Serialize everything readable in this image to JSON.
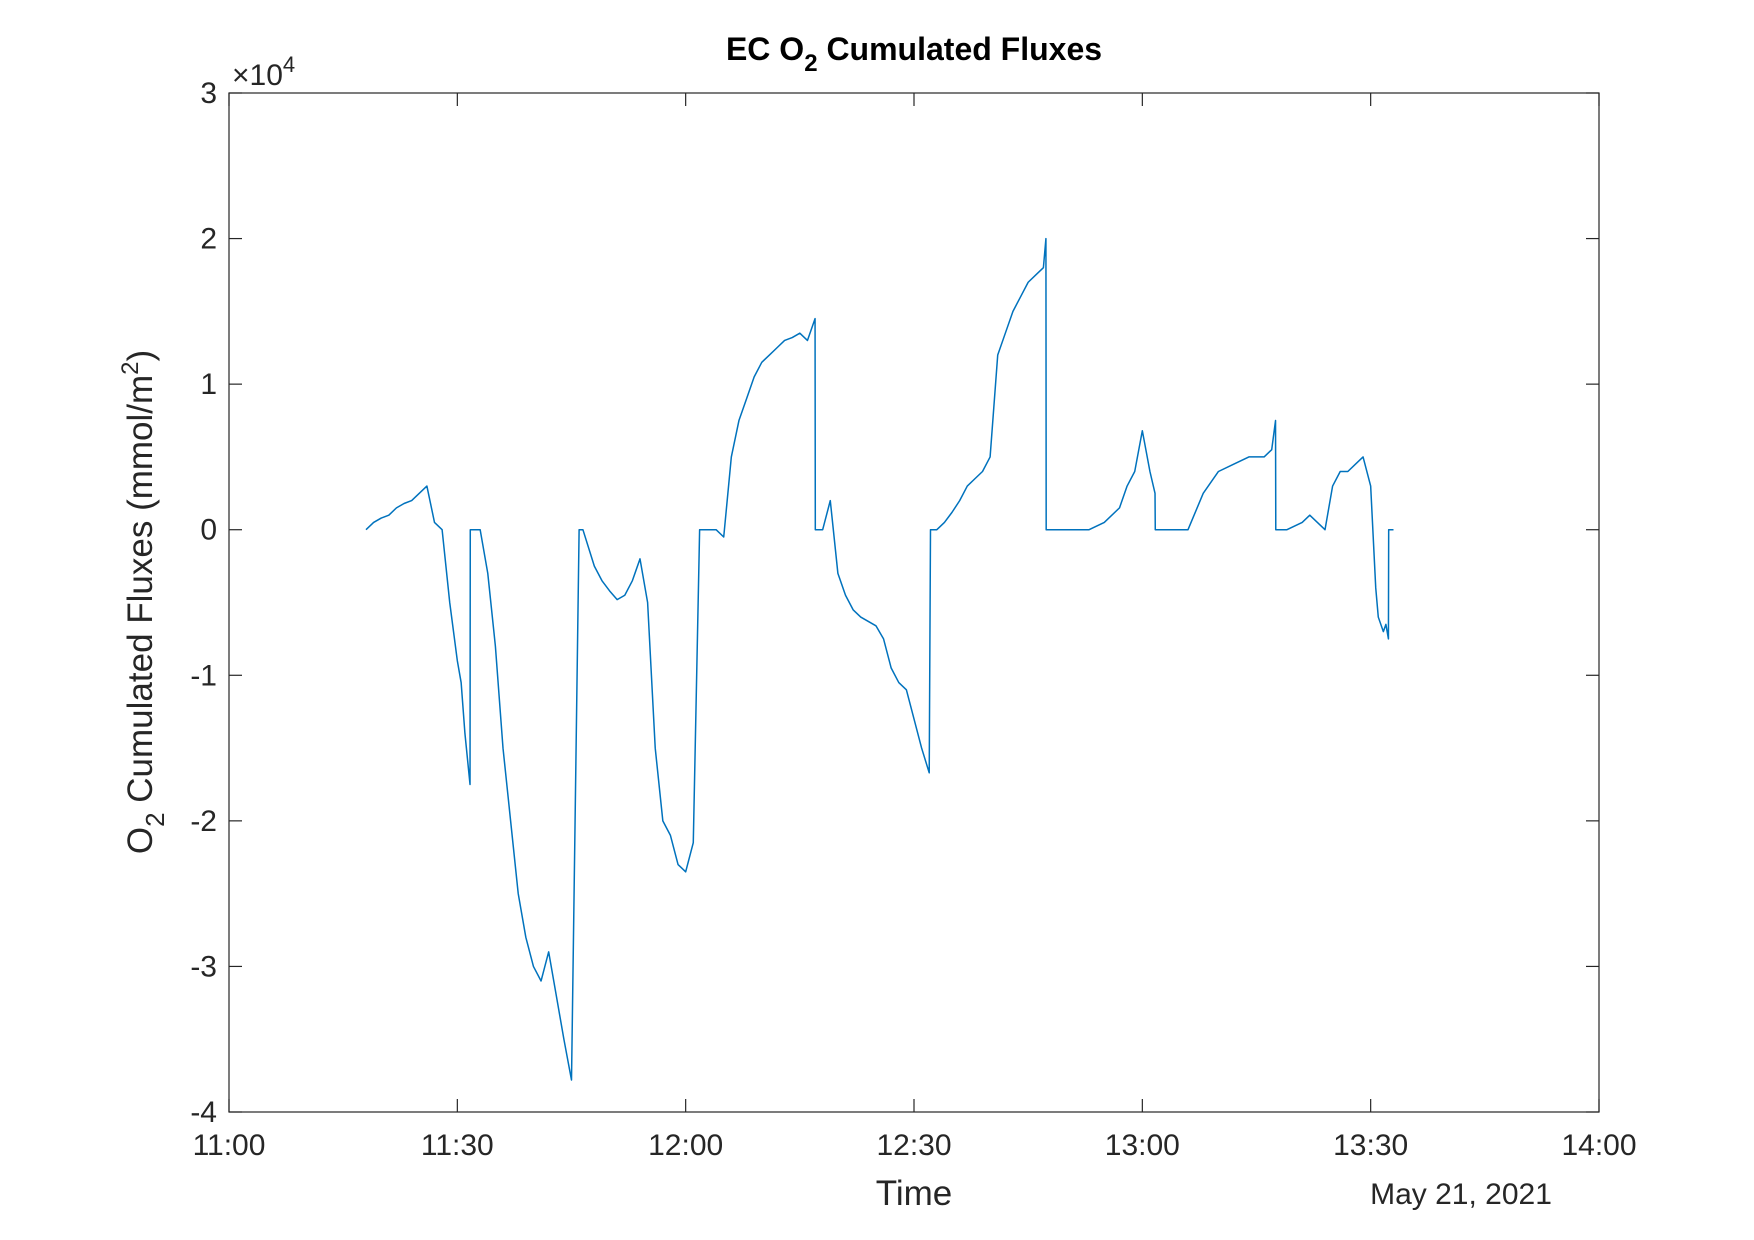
{
  "chart_data": {
    "type": "line",
    "title": {
      "pre": "EC O",
      "sub": "2",
      "post": " Cumulated Fluxes"
    },
    "xlabel": "Time",
    "date_label": "May 21, 2021",
    "ylabel": {
      "pre": "O",
      "sub": "2",
      "mid": " Cumulated Fluxes (mmol/m",
      "sup": "2",
      "post": ")"
    },
    "y_exponent": {
      "prefix": "×10",
      "power": "4"
    },
    "xlim": [
      "11:00",
      "14:00"
    ],
    "ylim": [
      -4,
      3
    ],
    "xticks": [
      "11:00",
      "11:30",
      "12:00",
      "12:30",
      "13:00",
      "13:30",
      "14:00"
    ],
    "yticks": [
      "3",
      "2",
      "1",
      "0",
      "-1",
      "-2",
      "-3",
      "-4"
    ],
    "grid": false,
    "line_color": "#0072BD",
    "series": [
      {
        "x": [
          "11:18",
          "11:19",
          "11:20",
          "11:21",
          "11:22",
          "11:23",
          "11:24",
          "11:25",
          "11:26",
          "11:27",
          "11:28",
          "11:29",
          "11:30",
          "11:30:30",
          "11:31",
          "11:31:40",
          "11:31:42",
          "11:33",
          "11:34",
          "11:35",
          "11:36",
          "11:37",
          "11:38",
          "11:39",
          "11:40",
          "11:41",
          "11:42",
          "11:43",
          "11:44",
          "11:45",
          "11:46",
          "11:46:28",
          "11:46:30",
          "11:48",
          "11:49",
          "11:50",
          "11:51",
          "11:52",
          "11:53",
          "11:54",
          "11:55",
          "11:56",
          "11:57",
          "11:58",
          "11:59",
          "12:00",
          "12:01",
          "12:01:50",
          "12:01:52",
          "12:03",
          "12:04",
          "12:05",
          "12:06",
          "12:07",
          "12:08",
          "12:09",
          "12:10",
          "12:11",
          "12:12",
          "12:13",
          "12:14",
          "12:15",
          "12:16",
          "12:17",
          "12:17:02",
          "12:18",
          "12:19",
          "12:20",
          "12:21",
          "12:22",
          "12:23",
          "12:24",
          "12:25",
          "12:26",
          "12:27",
          "12:28",
          "12:29",
          "12:30",
          "12:31",
          "12:32",
          "12:32:10",
          "12:33",
          "12:34",
          "12:35",
          "12:36",
          "12:37",
          "12:38",
          "12:39",
          "12:40",
          "12:41",
          "12:42",
          "12:43",
          "12:44",
          "12:45",
          "12:46",
          "12:47",
          "12:47:20",
          "12:47:22",
          "12:49",
          "12:51",
          "12:53",
          "12:55",
          "12:57",
          "12:58",
          "12:59",
          "13:00",
          "13:01",
          "13:01:40",
          "13:01:42",
          "13:04",
          "13:06",
          "13:08",
          "13:10",
          "13:12",
          "13:14",
          "13:16",
          "13:17",
          "13:17:30",
          "13:17:32",
          "13:19",
          "13:21",
          "13:22",
          "13:23",
          "13:24",
          "13:25",
          "13:26",
          "13:27",
          "13:28",
          "13:29",
          "13:30",
          "13:30:40",
          "13:31",
          "13:31:40",
          "13:32",
          "13:32:20",
          "13:32:22",
          "13:33"
        ],
        "y": [
          0,
          0.05,
          0.08,
          0.1,
          0.15,
          0.18,
          0.2,
          0.25,
          0.3,
          0.05,
          0,
          -0.5,
          -0.9,
          -1.05,
          -1.4,
          -1.75,
          0,
          0,
          -0.3,
          -0.8,
          -1.5,
          -2.0,
          -2.5,
          -2.8,
          -3.0,
          -3.1,
          -2.9,
          -3.2,
          -3.5,
          -3.78,
          0,
          0,
          0,
          -0.25,
          -0.35,
          -0.42,
          -0.48,
          -0.45,
          -0.35,
          -0.2,
          -0.5,
          -1.5,
          -2.0,
          -2.1,
          -2.3,
          -2.35,
          -2.15,
          0,
          0,
          0,
          0,
          -0.05,
          0.5,
          0.75,
          0.9,
          1.05,
          1.15,
          1.2,
          1.25,
          1.3,
          1.32,
          1.35,
          1.3,
          1.45,
          0,
          0,
          0.2,
          -0.3,
          -0.45,
          -0.55,
          -0.6,
          -0.63,
          -0.66,
          -0.75,
          -0.95,
          -1.05,
          -1.1,
          -1.3,
          -1.5,
          -1.67,
          0,
          0,
          0.05,
          0.12,
          0.2,
          0.3,
          0.35,
          0.4,
          0.5,
          1.2,
          1.35,
          1.5,
          1.6,
          1.7,
          1.75,
          1.8,
          2.0,
          0,
          0,
          0,
          0,
          0.05,
          0.15,
          0.3,
          0.4,
          0.68,
          0.4,
          0.25,
          0,
          0,
          0,
          0.25,
          0.4,
          0.45,
          0.5,
          0.5,
          0.55,
          0.75,
          0,
          0,
          0.05,
          0.1,
          0.05,
          0,
          0.3,
          0.4,
          0.4,
          0.45,
          0.5,
          0.3,
          -0.4,
          -0.6,
          -0.7,
          -0.65,
          -0.75,
          0,
          0
        ]
      }
    ]
  }
}
